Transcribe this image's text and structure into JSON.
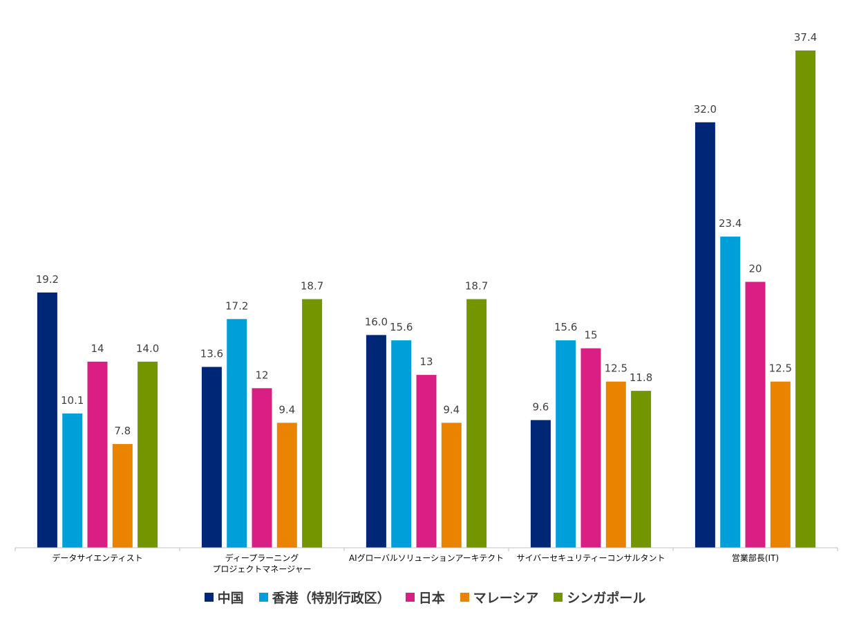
{
  "chart_data": {
    "type": "bar",
    "title": "",
    "xlabel": "",
    "ylabel": "",
    "ylim": [
      0,
      40
    ],
    "grid": false,
    "legend_position": "bottom",
    "categories": [
      [
        "データサイエンティスト"
      ],
      [
        "ディープラーニング",
        "プロジェクトマネージャー"
      ],
      [
        "AIグローバルソリューションアーキテクト"
      ],
      [
        "サイバーセキュリティーコンサルタント"
      ],
      [
        "営業部長(IT)"
      ]
    ],
    "series": [
      {
        "name": "中国",
        "color": "#002776",
        "values": [
          19.2,
          13.6,
          16.0,
          9.6,
          32.0
        ],
        "labels": [
          "19.2",
          "13.6",
          "16.0",
          "9.6",
          "32.0"
        ]
      },
      {
        "name": "香港（特別行政区）",
        "color": "#009fda",
        "values": [
          10.1,
          17.2,
          15.6,
          15.6,
          23.4
        ],
        "labels": [
          "10.1",
          "17.2",
          "15.6",
          "15.6",
          "23.4"
        ]
      },
      {
        "name": "日本",
        "color": "#d91f84",
        "values": [
          14,
          12,
          13,
          15,
          20
        ],
        "labels": [
          "14",
          "12",
          "13",
          "15",
          "20"
        ]
      },
      {
        "name": "マレーシア",
        "color": "#e98300",
        "values": [
          7.8,
          9.4,
          9.4,
          12.5,
          12.5
        ],
        "labels": [
          "7.8",
          "9.4",
          "9.4",
          "12.5",
          "12.5"
        ]
      },
      {
        "name": "シンガポール",
        "color": "#739600",
        "values": [
          14.0,
          18.7,
          18.7,
          11.8,
          37.4
        ],
        "labels": [
          "14.0",
          "18.7",
          "18.7",
          "11.8",
          "37.4"
        ]
      }
    ]
  }
}
